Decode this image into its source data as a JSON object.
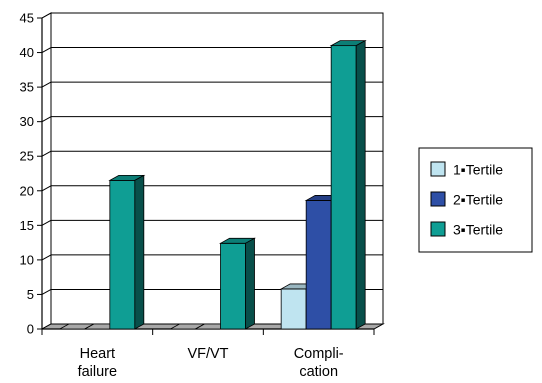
{
  "chart_data": {
    "type": "bar",
    "categories": [
      {
        "lines": [
          "Heart",
          "failure"
        ]
      },
      {
        "lines": [
          "VF/VT"
        ]
      },
      {
        "lines": [
          "Compli-",
          "cation"
        ]
      }
    ],
    "series": [
      {
        "name": "1▪Tertile",
        "values": [
          0,
          0,
          5.8
        ],
        "color": "#bfe4f0"
      },
      {
        "name": "2▪Tertile",
        "values": [
          0,
          0,
          18.6
        ],
        "color": "#2e4fa6"
      },
      {
        "name": "3▪Tertile",
        "values": [
          21.5,
          12.4,
          41.0
        ],
        "color": "#0f9e94"
      }
    ],
    "ylim": [
      0,
      45
    ],
    "yticks": [
      0,
      5,
      10,
      15,
      20,
      25,
      30,
      35,
      40,
      45
    ],
    "grid": true,
    "legend_position": "right",
    "xlabel": "",
    "ylabel": "",
    "title": ""
  }
}
